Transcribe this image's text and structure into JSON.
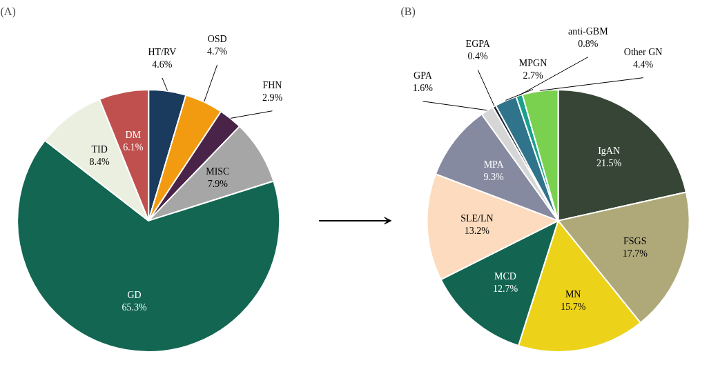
{
  "chart_data": [
    {
      "type": "pie",
      "title": "(A)",
      "categories": [
        "HT/RV",
        "OSD",
        "FHN",
        "MISC",
        "GD",
        "TID",
        "DM"
      ],
      "values": [
        4.6,
        4.7,
        2.9,
        7.9,
        65.3,
        8.4,
        6.1
      ],
      "value_labels": [
        "4.6%",
        "4.7%",
        "2.9%",
        "7.9%",
        "65.3%",
        "8.4%",
        "6.1%"
      ],
      "colors": [
        "#1a3a5e",
        "#f29b10",
        "#4a2448",
        "#a6a6a6",
        "#126652",
        "#ebefdf",
        "#c0504d"
      ]
    },
    {
      "type": "pie",
      "title": "(B)",
      "categories": [
        "IgAN",
        "FSGS",
        "MN",
        "MCD",
        "SLE/LN",
        "MPA",
        "GPA",
        "EGPA",
        "MPGN",
        "anti-GBM",
        "Other GN"
      ],
      "values": [
        21.5,
        17.7,
        15.7,
        12.7,
        13.2,
        9.3,
        1.6,
        0.4,
        2.7,
        0.8,
        4.4
      ],
      "value_labels": [
        "21.5%",
        "17.7%",
        "15.7%",
        "12.7%",
        "13.2%",
        "9.3%",
        "1.6%",
        "0.4%",
        "2.7%",
        "0.8%",
        "4.4%"
      ],
      "colors": [
        "#364535",
        "#afa97a",
        "#edd21a",
        "#136450",
        "#fddbbe",
        "#868aa0",
        "#d6d6d6",
        "#1b2a3a",
        "#2f748a",
        "#1aa08c",
        "#7ad04f"
      ]
    }
  ]
}
